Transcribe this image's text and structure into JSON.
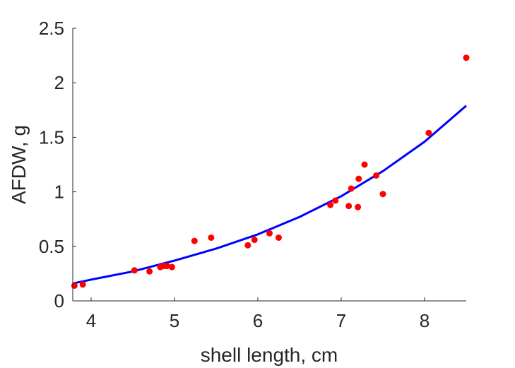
{
  "chart_data": {
    "type": "scatter",
    "title": "",
    "xlabel": "shell length, cm",
    "ylabel": "AFDW, g",
    "xlim": [
      3.78,
      8.5
    ],
    "ylim": [
      0,
      2.5
    ],
    "x_ticks": [
      "4",
      "5",
      "6",
      "7",
      "8"
    ],
    "y_ticks": [
      "0",
      "0.5",
      "1",
      "1.5",
      "2",
      "2.5"
    ],
    "grid": false,
    "legend": "none",
    "colors": {
      "points": "#ff0000",
      "fit": "#0000ff",
      "axes": "#262626"
    },
    "series": [
      {
        "kind": "scatter",
        "points": [
          [
            3.8,
            0.14
          ],
          [
            3.9,
            0.15
          ],
          [
            4.52,
            0.28
          ],
          [
            4.7,
            0.27
          ],
          [
            4.83,
            0.31
          ],
          [
            4.87,
            0.32
          ],
          [
            4.91,
            0.32
          ],
          [
            4.97,
            0.31
          ],
          [
            5.24,
            0.55
          ],
          [
            5.44,
            0.58
          ],
          [
            5.88,
            0.51
          ],
          [
            5.96,
            0.56
          ],
          [
            6.14,
            0.62
          ],
          [
            6.25,
            0.58
          ],
          [
            6.87,
            0.88
          ],
          [
            6.93,
            0.92
          ],
          [
            7.09,
            0.87
          ],
          [
            7.12,
            1.03
          ],
          [
            7.2,
            0.86
          ],
          [
            7.21,
            1.12
          ],
          [
            7.28,
            1.25
          ],
          [
            7.42,
            1.15
          ],
          [
            7.5,
            0.98
          ],
          [
            8.05,
            1.54
          ],
          [
            8.5,
            2.23
          ]
        ]
      },
      {
        "kind": "line",
        "points": [
          [
            3.78,
            0.16
          ],
          [
            4.0,
            0.195
          ],
          [
            4.5,
            0.27
          ],
          [
            5.0,
            0.37
          ],
          [
            5.5,
            0.48
          ],
          [
            6.0,
            0.61
          ],
          [
            6.5,
            0.77
          ],
          [
            7.0,
            0.96
          ],
          [
            7.5,
            1.19
          ],
          [
            8.0,
            1.46
          ],
          [
            8.5,
            1.79
          ]
        ]
      }
    ]
  }
}
